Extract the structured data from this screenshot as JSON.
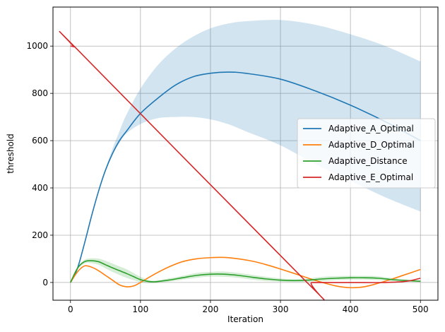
{
  "chart_data": {
    "type": "line",
    "title": "",
    "xlabel": "Iteration",
    "ylabel": "threshold",
    "xlim": [
      -25,
      525
    ],
    "ylim": [
      -75,
      1165
    ],
    "grid": true,
    "legend_position": "center-right",
    "x_ticks": [
      0,
      100,
      200,
      300,
      400,
      500
    ],
    "y_ticks": [
      0,
      200,
      400,
      600,
      800,
      1000
    ],
    "series": [
      {
        "name": "Adaptive_A_Optimal",
        "color": "#1f77b4",
        "x": [
          0,
          10,
          20,
          30,
          40,
          50,
          60,
          70,
          80,
          100,
          125,
          150,
          175,
          200,
          225,
          250,
          300,
          350,
          400,
          450,
          500
        ],
        "values": [
          0,
          60,
          165,
          280,
          385,
          475,
          545,
          600,
          640,
          715,
          780,
          835,
          870,
          885,
          890,
          885,
          860,
          810,
          750,
          680,
          600
        ],
        "band_lower": [
          0,
          60,
          165,
          280,
          385,
          470,
          540,
          590,
          630,
          670,
          695,
          700,
          700,
          690,
          670,
          640,
          580,
          500,
          430,
          360,
          300
        ],
        "band_upper": [
          0,
          60,
          165,
          280,
          385,
          480,
          565,
          640,
          710,
          820,
          920,
          990,
          1040,
          1075,
          1095,
          1105,
          1110,
          1090,
          1050,
          1000,
          935
        ]
      },
      {
        "name": "Adaptive_D_Optimal",
        "color": "#ff7f0e",
        "x": [
          0,
          10,
          20,
          30,
          40,
          50,
          60,
          70,
          80,
          90,
          100,
          120,
          140,
          160,
          180,
          200,
          220,
          240,
          260,
          280,
          300,
          320,
          340,
          360,
          380,
          400,
          420,
          440,
          460,
          480,
          500
        ],
        "values": [
          0,
          45,
          70,
          65,
          50,
          30,
          10,
          -10,
          -18,
          -15,
          0,
          35,
          65,
          88,
          100,
          105,
          106,
          100,
          90,
          75,
          57,
          38,
          18,
          0,
          -15,
          -22,
          -18,
          -3,
          15,
          35,
          55
        ]
      },
      {
        "name": "Adaptive_Distance",
        "color": "#2ca02c",
        "x": [
          0,
          10,
          20,
          30,
          40,
          50,
          60,
          70,
          80,
          90,
          100,
          110,
          120,
          140,
          160,
          180,
          200,
          220,
          240,
          260,
          280,
          300,
          320,
          340,
          360,
          380,
          400,
          420,
          440,
          460,
          480,
          500
        ],
        "values": [
          0,
          60,
          88,
          92,
          88,
          75,
          62,
          50,
          38,
          25,
          12,
          5,
          3,
          10,
          20,
          30,
          35,
          35,
          30,
          22,
          15,
          10,
          8,
          10,
          15,
          18,
          20,
          20,
          18,
          12,
          8,
          5
        ],
        "band_lower": [
          0,
          55,
          80,
          82,
          75,
          60,
          45,
          32,
          20,
          10,
          2,
          -2,
          -2,
          3,
          12,
          20,
          25,
          24,
          20,
          12,
          6,
          3,
          2,
          3,
          6,
          10,
          12,
          12,
          10,
          6,
          3,
          1
        ],
        "band_upper": [
          0,
          65,
          96,
          102,
          101,
          92,
          80,
          68,
          56,
          40,
          24,
          12,
          8,
          17,
          28,
          40,
          45,
          46,
          40,
          32,
          24,
          17,
          14,
          17,
          24,
          27,
          28,
          28,
          26,
          18,
          13,
          9
        ]
      },
      {
        "name": "Adaptive_E_Optimal",
        "color": "#d62728",
        "x": [
          0,
          5,
          10,
          338,
          345,
          400,
          450,
          480,
          500
        ],
        "values": [
          1000,
          997,
          985,
          0,
          0,
          0,
          0,
          5,
          18
        ]
      }
    ]
  }
}
